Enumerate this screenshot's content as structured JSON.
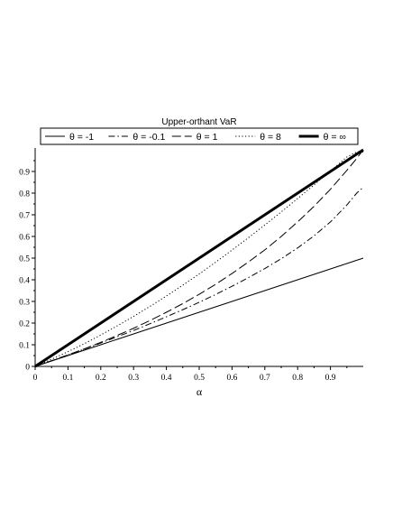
{
  "chart_data": {
    "type": "line",
    "title": "Upper-orthant VaR",
    "xlabel": "α",
    "ylabel": "",
    "xlim": [
      0,
      1
    ],
    "ylim": [
      0,
      1
    ],
    "xticks": [
      0,
      0.1,
      0.2,
      0.3,
      0.4,
      0.5,
      0.6,
      0.7,
      0.8,
      0.9
    ],
    "xtick_labels": [
      "0",
      "0.1",
      "0.2",
      "0.3",
      "0.4",
      "0.5",
      "0.6",
      "0.7",
      "0.8",
      "0.9"
    ],
    "yticks": [
      0,
      0.1,
      0.2,
      0.3,
      0.4,
      0.5,
      0.6,
      0.7,
      0.8,
      0.9
    ],
    "ytick_labels": [
      "0",
      "0.1",
      "0.2",
      "0.3",
      "0.4",
      "0.5",
      "0.6",
      "0.7",
      "0.8",
      "0.9"
    ],
    "grid": false,
    "legend_position": "top",
    "x": [
      0,
      0.05,
      0.1,
      0.15,
      0.2,
      0.25,
      0.3,
      0.35,
      0.4,
      0.45,
      0.5,
      0.55,
      0.6,
      0.65,
      0.7,
      0.75,
      0.8,
      0.85,
      0.9,
      0.95,
      0.98,
      0.995,
      1.0
    ],
    "series": [
      {
        "name": "θ = -1",
        "style": "solid",
        "width": 1,
        "values": [
          0,
          0.025,
          0.05,
          0.075,
          0.1,
          0.125,
          0.15,
          0.175,
          0.2,
          0.225,
          0.25,
          0.275,
          0.3,
          0.325,
          0.35,
          0.375,
          0.4,
          0.425,
          0.45,
          0.475,
          0.49,
          0.4975,
          0.5
        ]
      },
      {
        "name": "θ = -0.1",
        "style": "dashdot",
        "width": 1,
        "values": [
          0,
          0.026,
          0.053,
          0.08,
          0.108,
          0.137,
          0.166,
          0.197,
          0.229,
          0.262,
          0.296,
          0.332,
          0.37,
          0.41,
          0.452,
          0.497,
          0.547,
          0.603,
          0.667,
          0.745,
          0.8,
          0.82,
          0.82
        ]
      },
      {
        "name": "θ =  1",
        "style": "dashed",
        "width": 1,
        "values": [
          0,
          0.026,
          0.053,
          0.081,
          0.111,
          0.143,
          0.176,
          0.212,
          0.25,
          0.29,
          0.333,
          0.379,
          0.429,
          0.482,
          0.538,
          0.6,
          0.667,
          0.739,
          0.818,
          0.905,
          0.96,
          0.99,
          0.99
        ]
      },
      {
        "name": "θ = 8",
        "style": "dotted",
        "width": 1,
        "values": [
          0,
          0.033,
          0.068,
          0.105,
          0.145,
          0.187,
          0.231,
          0.277,
          0.325,
          0.375,
          0.427,
          0.481,
          0.537,
          0.594,
          0.653,
          0.713,
          0.775,
          0.838,
          0.902,
          0.967,
          0.99,
          0.995,
          0.995
        ]
      },
      {
        "name": "θ = ∞",
        "style": "solid",
        "width": 3,
        "values": [
          0,
          0.05,
          0.1,
          0.15,
          0.2,
          0.25,
          0.3,
          0.35,
          0.4,
          0.45,
          0.5,
          0.55,
          0.6,
          0.65,
          0.7,
          0.75,
          0.8,
          0.85,
          0.9,
          0.95,
          0.98,
          0.995,
          1.0
        ]
      }
    ]
  }
}
